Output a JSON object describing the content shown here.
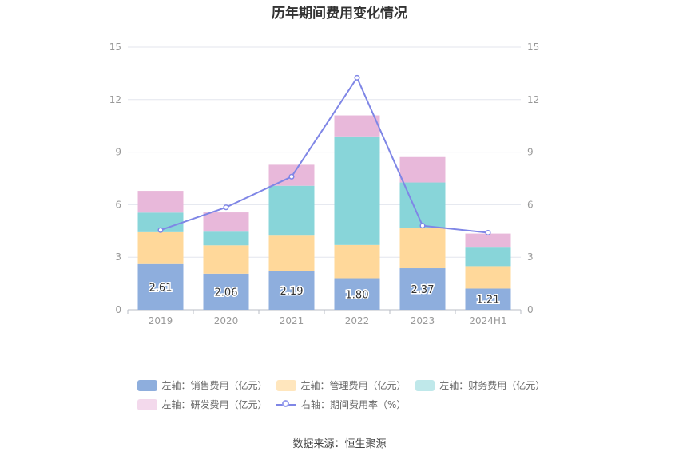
{
  "chart_data": {
    "type": "bar",
    "title": "历年期间费用变化情况",
    "categories": [
      "2019",
      "2020",
      "2021",
      "2022",
      "2023",
      "2024H1"
    ],
    "series": [
      {
        "name": "左轴：销售费用（亿元）",
        "kind": "bar",
        "color": "#8eaedd",
        "values": [
          2.61,
          2.06,
          2.19,
          1.8,
          2.37,
          1.21
        ],
        "show_labels": true
      },
      {
        "name": "左轴：管理费用（亿元）",
        "kind": "bar",
        "color": "#ffd89a",
        "values": [
          1.82,
          1.62,
          2.04,
          1.9,
          2.3,
          1.28
        ]
      },
      {
        "name": "左轴：财务费用（亿元）",
        "kind": "bar",
        "color": "#88d5d9",
        "values": [
          1.12,
          0.78,
          2.85,
          6.2,
          2.6,
          1.06
        ]
      },
      {
        "name": "左轴：研发费用（亿元）",
        "kind": "bar",
        "color": "#e8b8da",
        "values": [
          1.24,
          1.1,
          1.2,
          1.2,
          1.45,
          0.8
        ]
      },
      {
        "name": "右轴：期间费用率（%）",
        "kind": "line",
        "color": "#7f86e6",
        "values": [
          4.55,
          5.85,
          7.6,
          13.25,
          4.8,
          4.4
        ]
      }
    ],
    "y_left": {
      "ylim": [
        0,
        15
      ],
      "ticks": [
        "0",
        "3",
        "6",
        "9",
        "12",
        "15"
      ]
    },
    "y_right": {
      "ylim": [
        0,
        15
      ],
      "ticks": [
        "0",
        "3",
        "6",
        "9",
        "12",
        "15"
      ]
    },
    "stacked": true,
    "grid": true,
    "legend_position": "bottom"
  },
  "source": "数据来源：恒生聚源"
}
